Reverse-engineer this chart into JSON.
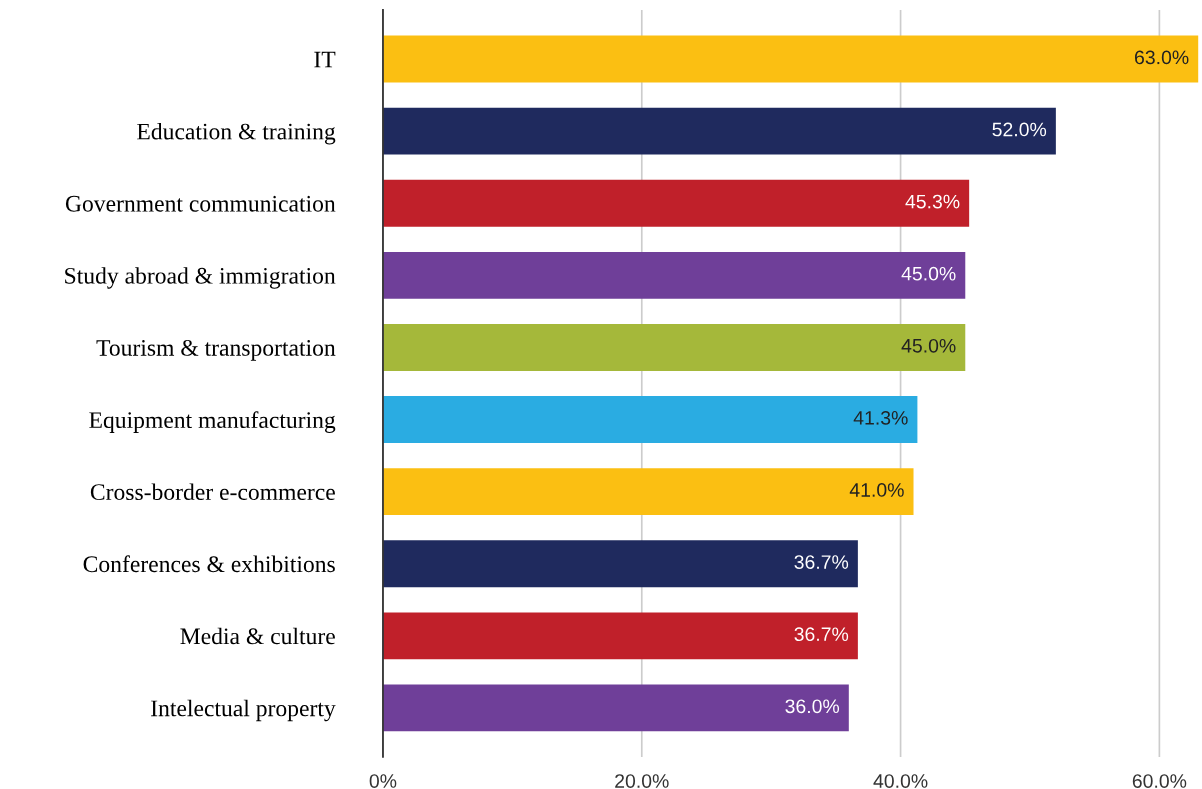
{
  "chart_data": {
    "type": "bar",
    "orientation": "horizontal",
    "categories": [
      "IT",
      "Education & training",
      "Government communication",
      "Study abroad & immigration",
      "Tourism & transportation",
      "Equipment manufacturing",
      "Cross-border e-commerce",
      "Conferences & exhibitions",
      "Media & culture",
      "Intelectual property"
    ],
    "values": [
      63.0,
      52.0,
      45.3,
      45.0,
      45.0,
      41.3,
      41.0,
      36.7,
      36.7,
      36.0
    ],
    "value_labels": [
      "63.0%",
      "52.0%",
      "45.3%",
      "45.0%",
      "45.0%",
      "41.3%",
      "41.0%",
      "36.7%",
      "36.7%",
      "36.0%"
    ],
    "colors": [
      "#fbbf12",
      "#1f2a5e",
      "#c0202a",
      "#6f3f99",
      "#a5b83a",
      "#2aace2",
      "#fbbf12",
      "#1f2a5e",
      "#c0202a",
      "#6f3f99"
    ],
    "xlim": [
      0,
      63.2
    ],
    "xticks": [
      {
        "value": 0,
        "label": "0%"
      },
      {
        "value": 20,
        "label": "20.0%"
      },
      {
        "value": 40,
        "label": "40.0%"
      },
      {
        "value": 60,
        "label": "60.0%"
      }
    ],
    "grid": "x",
    "legend": false
  }
}
